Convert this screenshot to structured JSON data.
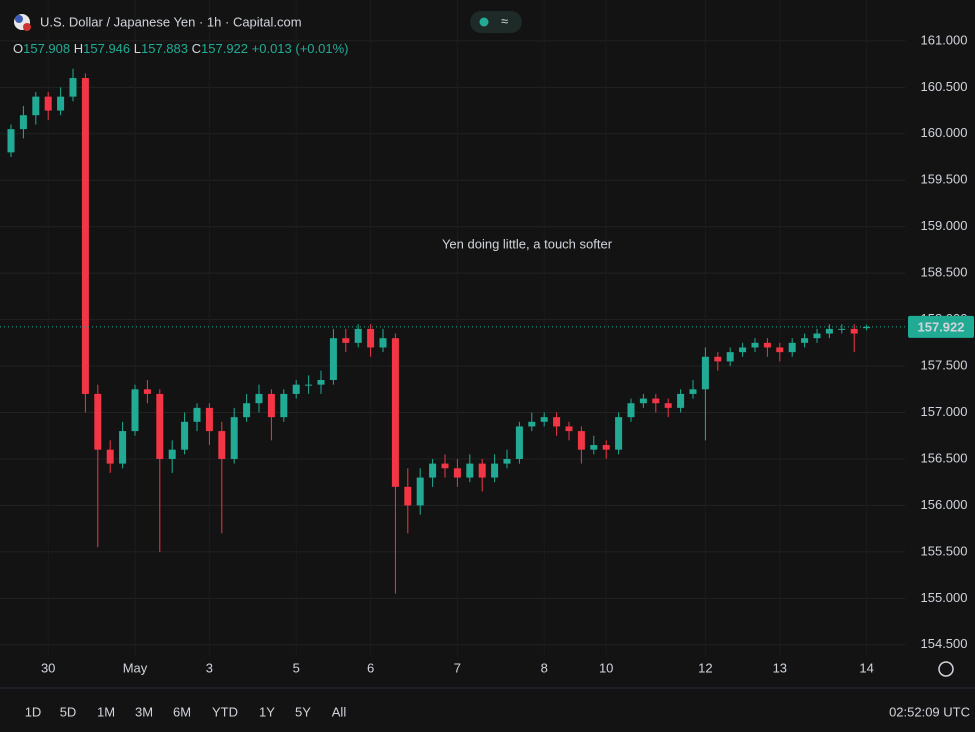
{
  "header": {
    "symbol": "U.S. Dollar / Japanese Yen · 1h · Capital.com",
    "ohlc_labels": [
      "O",
      "H",
      "L",
      "C"
    ],
    "change": "+0.013 (+0.01%)"
  },
  "toolbar": {
    "ranges": [
      "1D",
      "5D",
      "1M",
      "3M",
      "6M",
      "YTD",
      "1Y",
      "5Y",
      "All"
    ],
    "time": "02:52:09 UTC"
  },
  "chart_data": {
    "type": "candlestick",
    "annotation": "Yen doing little, a touch softer",
    "up_color": "#22ab94",
    "down_color": "#f23645",
    "grid": true,
    "price_line": true,
    "ylim": [
      154.39,
      161.44
    ],
    "yticks": [
      {
        "value": 154.5,
        "label": "154.500"
      },
      {
        "value": 155,
        "label": "155.000"
      },
      {
        "value": 155.5,
        "label": "155.500"
      },
      {
        "value": 156,
        "label": "156.000"
      },
      {
        "value": 156.5,
        "label": "156.500"
      },
      {
        "value": 157,
        "label": "157.000"
      },
      {
        "value": 157.5,
        "label": "157.500"
      },
      {
        "value": 158,
        "label": "158.000"
      },
      {
        "value": 158.5,
        "label": "158.500"
      },
      {
        "value": 159,
        "label": "159.000"
      },
      {
        "value": 159.5,
        "label": "159.500"
      },
      {
        "value": 160,
        "label": "160.000"
      },
      {
        "value": 160.5,
        "label": "160.500"
      },
      {
        "value": 161,
        "label": "161.000"
      }
    ],
    "categories": [
      null,
      null,
      null,
      "30",
      null,
      null,
      null,
      null,
      null,
      null,
      "May",
      null,
      null,
      null,
      null,
      null,
      "3",
      null,
      null,
      null,
      null,
      null,
      null,
      "5",
      null,
      null,
      null,
      null,
      null,
      "6",
      null,
      null,
      null,
      null,
      null,
      null,
      "7",
      null,
      null,
      null,
      null,
      null,
      null,
      "8",
      null,
      null,
      null,
      null,
      "10",
      null,
      null,
      null,
      null,
      null,
      null,
      null,
      "12",
      null,
      null,
      null,
      null,
      null,
      "13",
      null,
      null,
      null,
      null,
      null,
      null,
      "14"
    ],
    "open": [
      159.8,
      160.05,
      160.2,
      160.4,
      160.25,
      160.4,
      160.6,
      157.2,
      156.6,
      156.45,
      156.8,
      157.25,
      157.2,
      156.5,
      156.6,
      156.9,
      157.05,
      156.8,
      156.5,
      156.95,
      157.1,
      157.2,
      156.95,
      157.2,
      157.3,
      157.3,
      157.35,
      157.8,
      157.75,
      157.9,
      157.7,
      157.8,
      156.2,
      156.0,
      156.3,
      156.45,
      156.4,
      156.3,
      156.45,
      156.3,
      156.45,
      156.5,
      156.85,
      156.9,
      156.95,
      156.85,
      156.8,
      156.6,
      156.65,
      156.6,
      156.95,
      157.1,
      157.15,
      157.1,
      157.05,
      157.2,
      157.25,
      157.6,
      157.55,
      157.65,
      157.7,
      157.75,
      157.7,
      157.65,
      157.75,
      157.8,
      157.85,
      157.9,
      157.9,
      157.908
    ],
    "high": [
      160.1,
      160.3,
      160.45,
      160.45,
      160.5,
      160.7,
      160.65,
      157.3,
      156.7,
      156.9,
      157.3,
      157.35,
      157.25,
      156.7,
      157.0,
      157.1,
      157.1,
      156.9,
      157.05,
      157.2,
      157.3,
      157.25,
      157.25,
      157.35,
      157.4,
      157.45,
      157.9,
      157.9,
      157.95,
      157.95,
      157.9,
      157.85,
      156.4,
      156.4,
      156.5,
      156.55,
      156.5,
      156.55,
      156.5,
      156.55,
      156.6,
      156.9,
      157.0,
      157.0,
      157.0,
      156.9,
      156.85,
      156.75,
      156.7,
      157.0,
      157.15,
      157.2,
      157.2,
      157.15,
      157.25,
      157.35,
      157.7,
      157.65,
      157.7,
      157.75,
      157.8,
      157.8,
      157.75,
      157.8,
      157.85,
      157.9,
      157.95,
      157.95,
      157.95,
      157.946
    ],
    "low": [
      159.75,
      159.95,
      160.1,
      160.15,
      160.2,
      160.35,
      157.0,
      155.55,
      156.35,
      156.4,
      156.75,
      157.1,
      155.5,
      156.35,
      156.55,
      156.8,
      156.65,
      155.7,
      156.45,
      156.9,
      157.0,
      156.7,
      156.9,
      157.15,
      157.2,
      157.2,
      157.3,
      157.65,
      157.7,
      157.6,
      157.65,
      155.05,
      155.7,
      155.9,
      156.2,
      156.3,
      156.2,
      156.25,
      156.15,
      156.25,
      156.4,
      156.45,
      156.8,
      156.85,
      156.75,
      156.7,
      156.45,
      156.55,
      156.5,
      156.55,
      156.9,
      157.05,
      157.0,
      156.95,
      157.0,
      157.15,
      156.7,
      157.45,
      157.5,
      157.6,
      157.65,
      157.6,
      157.55,
      157.6,
      157.7,
      157.75,
      157.8,
      157.85,
      157.65,
      157.883
    ],
    "close": [
      160.05,
      160.2,
      160.4,
      160.25,
      160.4,
      160.6,
      157.2,
      156.6,
      156.45,
      156.8,
      157.25,
      157.2,
      156.5,
      156.6,
      156.9,
      157.05,
      156.8,
      156.5,
      156.95,
      157.1,
      157.2,
      156.95,
      157.2,
      157.3,
      157.3,
      157.35,
      157.8,
      157.75,
      157.9,
      157.7,
      157.8,
      156.2,
      156.0,
      156.3,
      156.45,
      156.4,
      156.3,
      156.45,
      156.3,
      156.45,
      156.5,
      156.85,
      156.9,
      156.95,
      156.85,
      156.8,
      156.6,
      156.65,
      156.6,
      156.95,
      157.1,
      157.15,
      157.1,
      157.05,
      157.2,
      157.25,
      157.6,
      157.55,
      157.65,
      157.7,
      157.75,
      157.7,
      157.65,
      157.75,
      157.8,
      157.85,
      157.9,
      157.9,
      157.85,
      157.922
    ]
  }
}
